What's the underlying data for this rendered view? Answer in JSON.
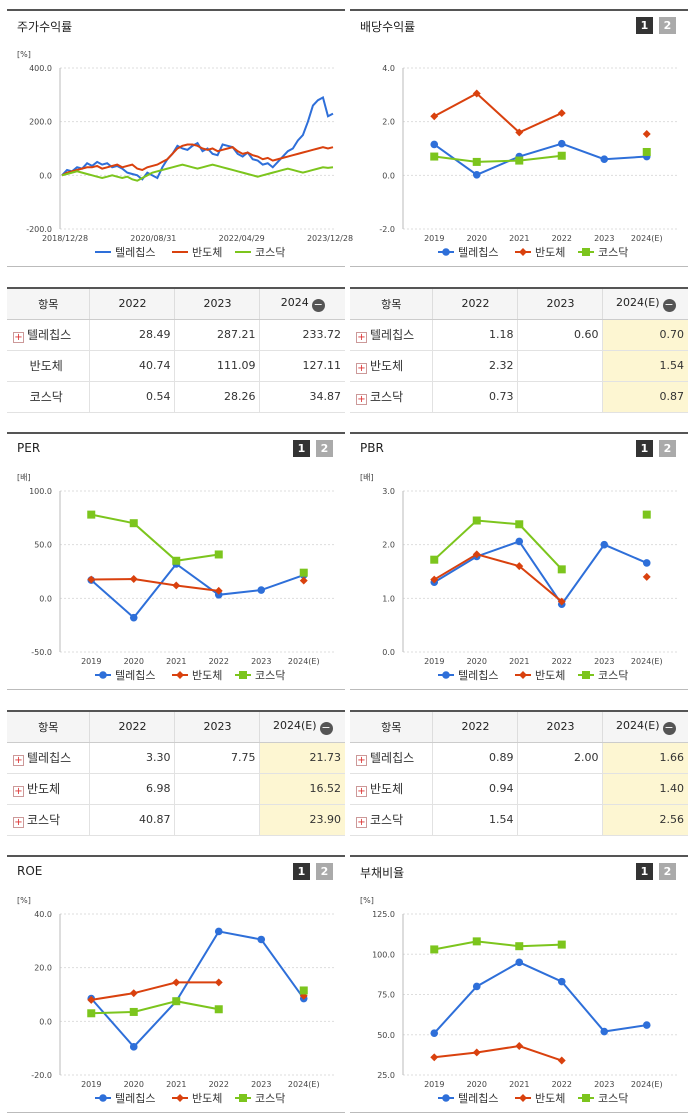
{
  "panels": {
    "stock": {
      "title": "주가수익률"
    },
    "dividend": {
      "title": "배당수익률"
    },
    "per": {
      "title": "PER"
    },
    "pbr": {
      "title": "PBR"
    },
    "roe": {
      "title": "ROE"
    },
    "debt": {
      "title": "부채비율"
    }
  },
  "pager": {
    "p1": "1",
    "p2": "2"
  },
  "legend": [
    "텔레칩스",
    "반도체",
    "코스닥"
  ],
  "colors": {
    "telechips": "#2e6fd9",
    "semi": "#d9410e",
    "kosdaq": "#7cc51d"
  },
  "tables": {
    "stock": {
      "header": [
        "항목",
        "2022",
        "2023",
        "2024"
      ],
      "rows": [
        {
          "name": "텔레칩스",
          "v": [
            "28.49",
            "287.21",
            "233.72"
          ]
        },
        {
          "name": "반도체",
          "v": [
            "40.74",
            "111.09",
            "127.11"
          ]
        },
        {
          "name": "코스닥",
          "v": [
            "0.54",
            "28.26",
            "34.87"
          ]
        }
      ]
    },
    "dividend": {
      "header": [
        "항목",
        "2022",
        "2023",
        "2024(E)"
      ],
      "rows": [
        {
          "name": "텔레칩스",
          "v": [
            "1.18",
            "0.60",
            "0.70"
          ]
        },
        {
          "name": "반도체",
          "v": [
            "2.32",
            "",
            "1.54"
          ]
        },
        {
          "name": "코스닥",
          "v": [
            "0.73",
            "",
            "0.87"
          ]
        }
      ]
    },
    "per": {
      "header": [
        "항목",
        "2022",
        "2023",
        "2024(E)"
      ],
      "rows": [
        {
          "name": "텔레칩스",
          "v": [
            "3.30",
            "7.75",
            "21.73"
          ]
        },
        {
          "name": "반도체",
          "v": [
            "6.98",
            "",
            "16.52"
          ]
        },
        {
          "name": "코스닥",
          "v": [
            "40.87",
            "",
            "23.90"
          ]
        }
      ]
    },
    "pbr": {
      "header": [
        "항목",
        "2022",
        "2023",
        "2024(E)"
      ],
      "rows": [
        {
          "name": "텔레칩스",
          "v": [
            "0.89",
            "2.00",
            "1.66"
          ]
        },
        {
          "name": "반도체",
          "v": [
            "0.94",
            "",
            "1.40"
          ]
        },
        {
          "name": "코스닥",
          "v": [
            "1.54",
            "",
            "2.56"
          ]
        }
      ]
    }
  },
  "chart_data": [
    {
      "id": "stock",
      "type": "line",
      "unit": "[%]",
      "ylim": [
        -200,
        400
      ],
      "yticks": [
        "400.0",
        "200.0",
        "0.0",
        "-200.0"
      ],
      "xticks": [
        "2018/12/28",
        "2020/08/31",
        "2022/04/29",
        "2023/12/28"
      ],
      "series": [
        {
          "name": "텔레칩스",
          "values": [
            0,
            20,
            15,
            30,
            25,
            45,
            35,
            50,
            40,
            45,
            30,
            35,
            25,
            10,
            5,
            0,
            -15,
            10,
            0,
            -10,
            30,
            60,
            80,
            110,
            100,
            95,
            110,
            120,
            90,
            100,
            80,
            75,
            115,
            110,
            105,
            80,
            70,
            85,
            60,
            55,
            40,
            45,
            30,
            50,
            70,
            90,
            100,
            130,
            150,
            200,
            260,
            280,
            290,
            220,
            230
          ]
        },
        {
          "name": "반도체",
          "values": [
            0,
            10,
            15,
            20,
            25,
            30,
            30,
            35,
            25,
            30,
            35,
            40,
            30,
            35,
            40,
            25,
            20,
            30,
            35,
            40,
            50,
            60,
            80,
            100,
            110,
            115,
            115,
            110,
            100,
            95,
            100,
            90,
            95,
            100,
            105,
            90,
            80,
            85,
            75,
            70,
            60,
            65,
            55,
            60,
            65,
            70,
            75,
            80,
            85,
            90,
            95,
            100,
            105,
            100,
            105
          ]
        },
        {
          "name": "코스닥",
          "values": [
            0,
            5,
            10,
            15,
            10,
            5,
            0,
            -5,
            -10,
            -5,
            0,
            -5,
            -10,
            -5,
            -15,
            -20,
            -10,
            0,
            10,
            15,
            20,
            25,
            30,
            35,
            40,
            35,
            30,
            25,
            30,
            35,
            40,
            35,
            30,
            25,
            20,
            15,
            10,
            5,
            0,
            -5,
            0,
            5,
            10,
            15,
            20,
            25,
            20,
            15,
            10,
            15,
            20,
            25,
            30,
            28,
            30
          ]
        }
      ]
    },
    {
      "id": "dividend",
      "type": "line",
      "unit": "",
      "ylim": [
        -2,
        4
      ],
      "yticks": [
        "4.0",
        "2.0",
        "0.0",
        "-2.0"
      ],
      "categories": [
        "2019",
        "2020",
        "2021",
        "2022",
        "2023",
        "2024(E)"
      ],
      "series": [
        {
          "name": "텔레칩스",
          "values": [
            1.15,
            0.02,
            0.7,
            1.18,
            0.6,
            0.7
          ]
        },
        {
          "name": "반도체",
          "values": [
            2.2,
            3.05,
            1.6,
            2.32,
            null,
            1.54
          ]
        },
        {
          "name": "코스닥",
          "values": [
            0.7,
            0.5,
            0.55,
            0.73,
            null,
            0.87
          ]
        }
      ]
    },
    {
      "id": "per",
      "type": "line",
      "unit": "[배]",
      "ylim": [
        -50,
        100
      ],
      "yticks": [
        "100.0",
        "50.0",
        "0.0",
        "-50.0"
      ],
      "categories": [
        "2019",
        "2020",
        "2021",
        "2022",
        "2023",
        "2024(E)"
      ],
      "series": [
        {
          "name": "텔레칩스",
          "values": [
            17,
            -18,
            32,
            3.3,
            7.75,
            21.73
          ]
        },
        {
          "name": "반도체",
          "values": [
            17.5,
            18,
            12,
            6.98,
            null,
            16.52
          ]
        },
        {
          "name": "코스닥",
          "values": [
            78,
            70,
            35,
            40.87,
            null,
            23.9
          ]
        }
      ]
    },
    {
      "id": "pbr",
      "type": "line",
      "unit": "[배]",
      "ylim": [
        0,
        3
      ],
      "yticks": [
        "3.0",
        "2.0",
        "1.0",
        "0.0"
      ],
      "categories": [
        "2019",
        "2020",
        "2021",
        "2022",
        "2023",
        "2024(E)"
      ],
      "series": [
        {
          "name": "텔레칩스",
          "values": [
            1.3,
            1.78,
            2.06,
            0.89,
            2.0,
            1.66
          ]
        },
        {
          "name": "반도체",
          "values": [
            1.35,
            1.82,
            1.6,
            0.94,
            null,
            1.4
          ]
        },
        {
          "name": "코스닥",
          "values": [
            1.72,
            2.45,
            2.38,
            1.54,
            null,
            2.56
          ]
        }
      ]
    },
    {
      "id": "roe",
      "type": "line",
      "unit": "[%]",
      "ylim": [
        -20,
        40
      ],
      "yticks": [
        "40.0",
        "20.0",
        "0.0",
        "-20.0"
      ],
      "categories": [
        "2019",
        "2020",
        "2021",
        "2022",
        "2023",
        "2024(E)"
      ],
      "series": [
        {
          "name": "텔레칩스",
          "values": [
            8.5,
            -9.5,
            7.5,
            33.5,
            30.5,
            8.5
          ]
        },
        {
          "name": "반도체",
          "values": [
            8,
            10.5,
            14.5,
            14.5,
            null,
            9.5
          ]
        },
        {
          "name": "코스닥",
          "values": [
            3,
            3.5,
            7.5,
            4.5,
            null,
            11.5
          ]
        }
      ]
    },
    {
      "id": "debt",
      "type": "line",
      "unit": "[%]",
      "ylim": [
        25,
        125
      ],
      "yticks": [
        "125.0",
        "100.0",
        "75.0",
        "50.0",
        "25.0"
      ],
      "categories": [
        "2019",
        "2020",
        "2021",
        "2022",
        "2023",
        "2024(E)"
      ],
      "series": [
        {
          "name": "텔레칩스",
          "values": [
            51,
            80,
            95,
            83,
            52,
            56
          ]
        },
        {
          "name": "반도체",
          "values": [
            36,
            39,
            43,
            34,
            null,
            null
          ]
        },
        {
          "name": "코스닥",
          "values": [
            103,
            108,
            105,
            106,
            null,
            null
          ]
        }
      ]
    }
  ]
}
